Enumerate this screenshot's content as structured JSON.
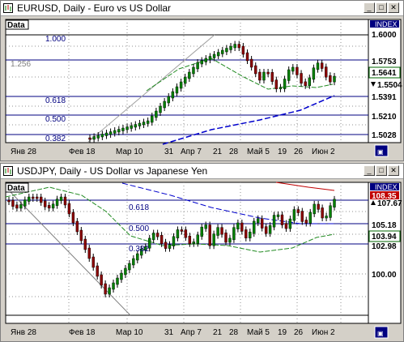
{
  "windows": [
    {
      "title": "EURUSD, Daily - Euro vs US Dollar",
      "data_tag": "Data",
      "index_label": "INDEX",
      "xticks": [
        "Янв 28",
        "Фев 18",
        "Мар 10",
        "31",
        "Апр 7",
        "21",
        "28",
        "Май 5",
        "19",
        "26",
        "Июн 2"
      ],
      "fib_levels": [
        "1.000",
        "1.256",
        "0.618",
        "0.500",
        "0.382",
        "1.000"
      ],
      "price_labels": [
        "1.6000",
        "1.5753",
        "1.5641",
        "1.5504",
        "1.5391",
        "1.5210",
        "1.5028"
      ],
      "highlight_colors": {
        "1.5641": "#006400",
        "1.5504": "#000000",
        "1.5028": "#000080"
      }
    },
    {
      "title": "USDJPY, Daily - US Dollar vs Japanese Yen",
      "data_tag": "Data",
      "index_label": "INDEX",
      "xticks": [
        "Янв 28",
        "Фев 18",
        "Мар 10",
        "31",
        "Апр 7",
        "21",
        "28",
        "Май 5",
        "19",
        "26",
        "Июн 2"
      ],
      "fib_levels": [
        "0.618",
        "0.500",
        "0.382"
      ],
      "price_labels": [
        "108.35",
        "107.67",
        "105.18",
        "103.94",
        "102.98",
        "100.00"
      ],
      "highlight_colors": {
        "108.35": "#c00000",
        "107.67": "#000000",
        "103.94": "#006400",
        "102.98": "#000080"
      }
    }
  ],
  "colors": {
    "up_candle": "#008000",
    "down_candle": "#8b0000",
    "ma_green": "#228b22",
    "ma_blue": "#0000cd",
    "ma_red": "#c00000",
    "accent": "#000080"
  }
}
